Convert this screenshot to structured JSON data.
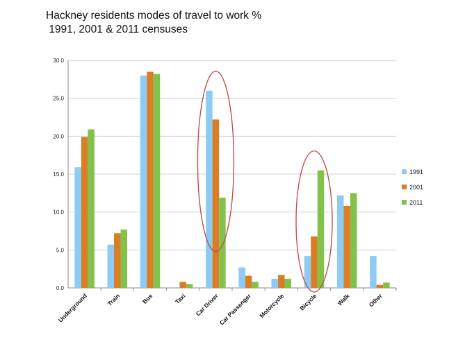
{
  "chart_data": {
    "type": "bar",
    "title": "Hackney residents modes of travel to work %",
    "subtitle": "1991, 2001 & 2011 censuses",
    "ylim": [
      0,
      30
    ],
    "yticks": [
      "0.0",
      "5.0",
      "10.0",
      "15.0",
      "20.0",
      "25.0",
      "30.0"
    ],
    "ytick_values": [
      0,
      5,
      10,
      15,
      20,
      25,
      30
    ],
    "grid": true,
    "legend_position": "right",
    "categories": [
      "Underground",
      "Train",
      "Bus",
      "Taxi",
      "Car Driver",
      "Car Passenger",
      "Motorcycle",
      "Bicycle",
      "Walk",
      "Other"
    ],
    "series": [
      {
        "name": "1991",
        "color": "#8ecbf2",
        "values": [
          15.9,
          5.7,
          28.0,
          0.0,
          26.0,
          2.7,
          1.2,
          4.2,
          12.2,
          4.2
        ]
      },
      {
        "name": "2001",
        "color": "#d97d27",
        "values": [
          19.9,
          7.2,
          28.5,
          0.8,
          22.2,
          1.6,
          1.7,
          6.8,
          10.8,
          0.4
        ]
      },
      {
        "name": "2011",
        "color": "#82c24a",
        "values": [
          20.9,
          7.7,
          28.2,
          0.5,
          11.9,
          0.8,
          1.2,
          15.5,
          12.5,
          0.7
        ]
      }
    ],
    "annotations": [
      {
        "shape": "ellipse",
        "around": "Car Driver",
        "color": "#c0504d"
      },
      {
        "shape": "ellipse",
        "around": "Bicycle",
        "color": "#c0504d"
      }
    ]
  }
}
